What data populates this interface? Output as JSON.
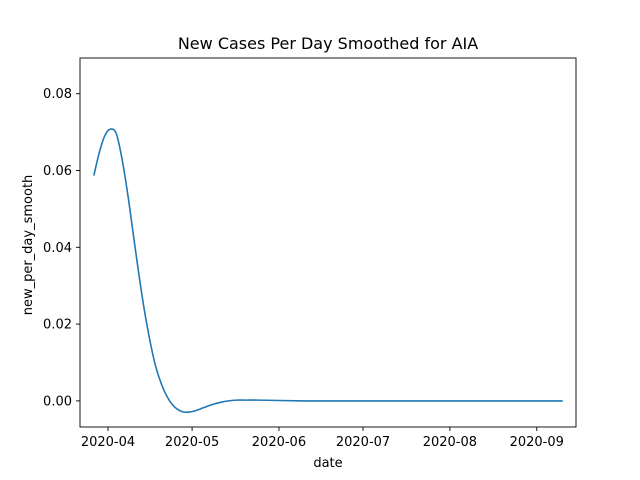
{
  "chart_data": {
    "type": "line",
    "title": "New Cases Per Day Smoothed for AIA",
    "xlabel": "date",
    "ylabel": "new_per_day_smooth",
    "x_tick_labels": [
      "2020-04",
      "2020-05",
      "2020-06",
      "2020-07",
      "2020-08",
      "2020-09"
    ],
    "x_ticks": [
      "2020-04-01",
      "2020-05-01",
      "2020-06-01",
      "2020-07-01",
      "2020-08-01",
      "2020-09-01"
    ],
    "y_tick_labels": [
      "0.00",
      "0.02",
      "0.04",
      "0.06",
      "0.08"
    ],
    "y_ticks": [
      0.0,
      0.02,
      0.04,
      0.06,
      0.08
    ],
    "xlim": [
      "2020-03-22",
      "2020-09-15"
    ],
    "ylim": [
      -0.0068,
      0.0893
    ],
    "grid": false,
    "line_color": "#1f77b4",
    "series": [
      {
        "x": [
          "2020-03-27",
          "2020-03-29",
          "2020-03-31",
          "2020-04-02",
          "2020-04-04",
          "2020-04-06",
          "2020-04-08",
          "2020-04-10",
          "2020-04-12",
          "2020-04-14",
          "2020-04-16",
          "2020-04-18",
          "2020-04-20",
          "2020-04-22",
          "2020-04-24",
          "2020-04-26",
          "2020-04-28",
          "2020-04-30",
          "2020-05-02",
          "2020-05-05",
          "2020-05-08",
          "2020-05-11",
          "2020-05-14",
          "2020-05-17",
          "2020-05-20",
          "2020-05-25",
          "2020-06-01",
          "2020-06-10",
          "2020-06-20",
          "2020-07-01",
          "2020-07-15",
          "2020-08-01",
          "2020-08-15",
          "2020-09-01",
          "2020-09-10"
        ],
        "y": [
          0.0589,
          0.065,
          0.0693,
          0.0708,
          0.0695,
          0.063,
          0.054,
          0.0435,
          0.033,
          0.0235,
          0.0155,
          0.009,
          0.0045,
          0.0012,
          -0.001,
          -0.0023,
          -0.0029,
          -0.0029,
          -0.0026,
          -0.0018,
          -0.001,
          -0.0004,
          0.0,
          0.0002,
          0.0002,
          0.0002,
          0.0001,
          0.0,
          0.0,
          0.0,
          0.0,
          0.0,
          0.0,
          0.0,
          0.0
        ]
      }
    ]
  }
}
